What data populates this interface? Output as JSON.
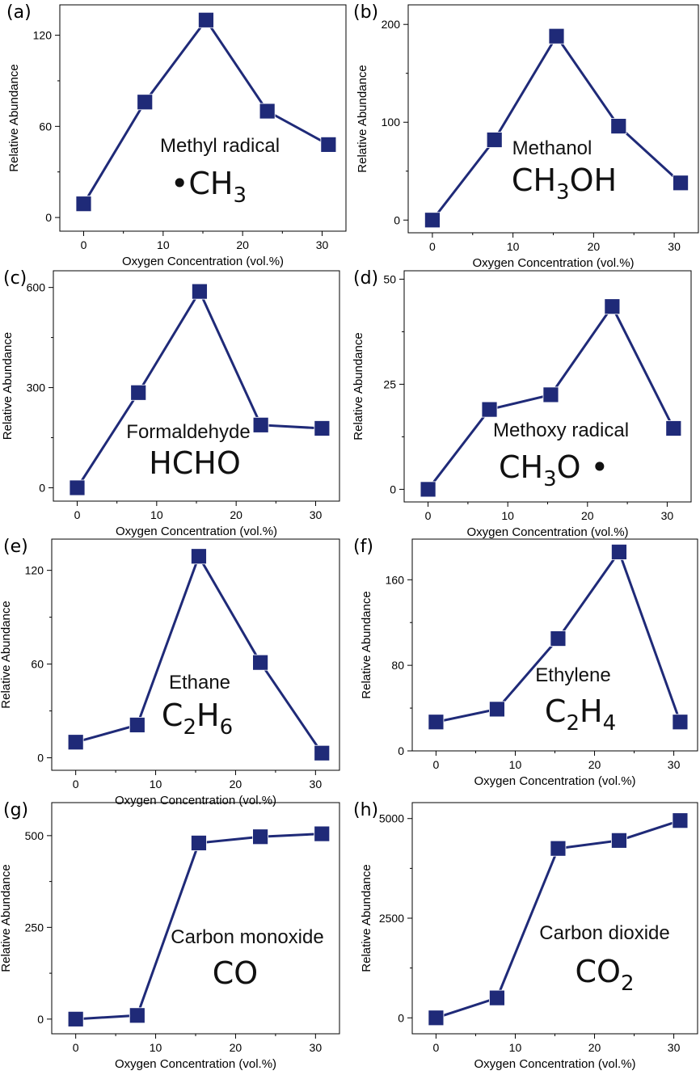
{
  "colors": {
    "series": "#1f2a78",
    "axis": "#000000"
  },
  "chart_data": [
    {
      "panel": "(a)",
      "type": "line",
      "x": [
        0,
        7.7,
        15.4,
        23.1,
        30.8
      ],
      "values": [
        9,
        76,
        130,
        70,
        48
      ],
      "ylim": [
        -9,
        140
      ],
      "yticks": [
        0,
        60,
        120
      ],
      "ytick_labels": [
        "0",
        "60",
        "120"
      ],
      "xlim": [
        -3,
        33
      ],
      "xticks": [
        0,
        10,
        20,
        30
      ],
      "xtick_labels": [
        "0",
        "10",
        "20",
        "30"
      ],
      "xlabel": "Oxygen Concentration (vol.%)",
      "ylabel": "Relative Abundance",
      "annotation": {
        "name": "Methyl radical",
        "formula": [
          [
            "•CH",
            ""
          ],
          [
            "3",
            "sub"
          ]
        ]
      }
    },
    {
      "panel": "(b)",
      "type": "line",
      "x": [
        0,
        7.7,
        15.4,
        23.1,
        30.8
      ],
      "values": [
        0,
        82,
        188,
        96,
        38
      ],
      "ylim": [
        -13,
        220
      ],
      "yticks": [
        0,
        100,
        200
      ],
      "ytick_labels": [
        "0",
        "100",
        "200"
      ],
      "xlim": [
        -3,
        33
      ],
      "xticks": [
        0,
        10,
        20,
        30
      ],
      "xtick_labels": [
        "0",
        "10",
        "20",
        "30"
      ],
      "xlabel": "Oxygen Concentration (vol.%)",
      "ylabel": "Relative Abundance",
      "annotation": {
        "name": "Methanol",
        "formula": [
          [
            "CH",
            ""
          ],
          [
            "3",
            "sub"
          ],
          [
            "OH",
            ""
          ]
        ]
      }
    },
    {
      "panel": "(c)",
      "type": "line",
      "x": [
        0,
        7.7,
        15.4,
        23.1,
        30.8
      ],
      "values": [
        0,
        285,
        588,
        188,
        178
      ],
      "ylim": [
        -40,
        650
      ],
      "yticks": [
        0,
        300,
        600
      ],
      "ytick_labels": [
        "0",
        "300",
        "600"
      ],
      "xlim": [
        -3,
        33
      ],
      "xticks": [
        0,
        10,
        20,
        30
      ],
      "xtick_labels": [
        "0",
        "10",
        "20",
        "30"
      ],
      "xlabel": "Oxygen Concentration (vol.%)",
      "ylabel": "Relative Abundance",
      "annotation": {
        "name": "Formaldehyde",
        "formula": [
          [
            "HCHO",
            ""
          ]
        ]
      }
    },
    {
      "panel": "(d)",
      "type": "line",
      "x": [
        0,
        7.7,
        15.4,
        23.1,
        30.8
      ],
      "values": [
        0,
        19,
        22.5,
        43.5,
        14.5
      ],
      "ylim": [
        -3,
        52
      ],
      "yticks": [
        0,
        25,
        50
      ],
      "ytick_labels": [
        "0",
        "25",
        "50"
      ],
      "xlim": [
        -3,
        33
      ],
      "xticks": [
        0,
        10,
        20,
        30
      ],
      "xtick_labels": [
        "0",
        "10",
        "20",
        "30"
      ],
      "xlabel": "Oxygen Concentration (vol.%)",
      "ylabel": "Relative Abundance",
      "annotation": {
        "name": "Methoxy radical",
        "formula": [
          [
            "CH",
            ""
          ],
          [
            "3",
            "sub"
          ],
          [
            "O •",
            ""
          ]
        ]
      }
    },
    {
      "panel": "(e)",
      "type": "line",
      "x": [
        0,
        7.7,
        15.4,
        23.1,
        30.8
      ],
      "values": [
        10,
        21,
        129,
        61,
        3
      ],
      "ylim": [
        -8,
        140
      ],
      "yticks": [
        0,
        60,
        120
      ],
      "ytick_labels": [
        "0",
        "60",
        "120"
      ],
      "xlim": [
        -3,
        33
      ],
      "xticks": [
        0,
        10,
        20,
        30
      ],
      "xtick_labels": [
        "0",
        "10",
        "20",
        "30"
      ],
      "xlabel": "Oxygen Concentration (vol.%)",
      "ylabel": "Relative Abundance",
      "annotation": {
        "name": "Ethane",
        "formula": [
          [
            "C",
            ""
          ],
          [
            "2",
            "sub"
          ],
          [
            "H",
            ""
          ],
          [
            "6",
            "sub"
          ]
        ]
      }
    },
    {
      "panel": "(f)",
      "type": "line",
      "x": [
        0,
        7.7,
        15.4,
        23.1,
        30.8
      ],
      "values": [
        27,
        39,
        105,
        186,
        27
      ],
      "ylim": [
        0,
        198
      ],
      "yticks": [
        0,
        80,
        160
      ],
      "ytick_labels": [
        "0",
        "80",
        "160"
      ],
      "xlim": [
        -3,
        33
      ],
      "xticks": [
        0,
        10,
        20,
        30
      ],
      "xtick_labels": [
        "0",
        "10",
        "20",
        "30"
      ],
      "xlabel": "Oxygen Concentration (vol.%)",
      "ylabel": "Relative Abundance",
      "annotation": {
        "name": "Ethylene",
        "formula": [
          [
            "C",
            ""
          ],
          [
            "2",
            "sub"
          ],
          [
            "H",
            ""
          ],
          [
            "4",
            "sub"
          ]
        ]
      }
    },
    {
      "panel": "(g)",
      "type": "line",
      "x": [
        0,
        7.7,
        15.4,
        23.1,
        30.8
      ],
      "values": [
        0,
        10,
        480,
        497,
        505
      ],
      "ylim": [
        -40,
        590
      ],
      "yticks": [
        0,
        250,
        500
      ],
      "ytick_labels": [
        "0",
        "250",
        "500"
      ],
      "xlim": [
        -3,
        33
      ],
      "xticks": [
        0,
        10,
        20,
        30
      ],
      "xtick_labels": [
        "0",
        "10",
        "20",
        "30"
      ],
      "xlabel": "Oxygen Concentration (vol.%)",
      "ylabel": "Relative Abundance",
      "annotation": {
        "name": "Carbon monoxide",
        "formula": [
          [
            "CO",
            ""
          ]
        ]
      }
    },
    {
      "panel": "(h)",
      "type": "line",
      "x": [
        0,
        7.7,
        15.4,
        23.1,
        30.8
      ],
      "values": [
        0,
        500,
        4250,
        4450,
        4950
      ],
      "ylim": [
        -400,
        5400
      ],
      "yticks": [
        0,
        2500,
        5000
      ],
      "ytick_labels": [
        "0",
        "2500",
        "5000"
      ],
      "xlim": [
        -3,
        33
      ],
      "xticks": [
        0,
        10,
        20,
        30
      ],
      "xtick_labels": [
        "0",
        "10",
        "20",
        "30"
      ],
      "xlabel": "Oxygen Concentration (vol.%)",
      "ylabel": "Relative Abundance",
      "annotation": {
        "name": "Carbon dioxide",
        "formula": [
          [
            "CO",
            ""
          ],
          [
            "2",
            "sub"
          ]
        ]
      }
    }
  ]
}
